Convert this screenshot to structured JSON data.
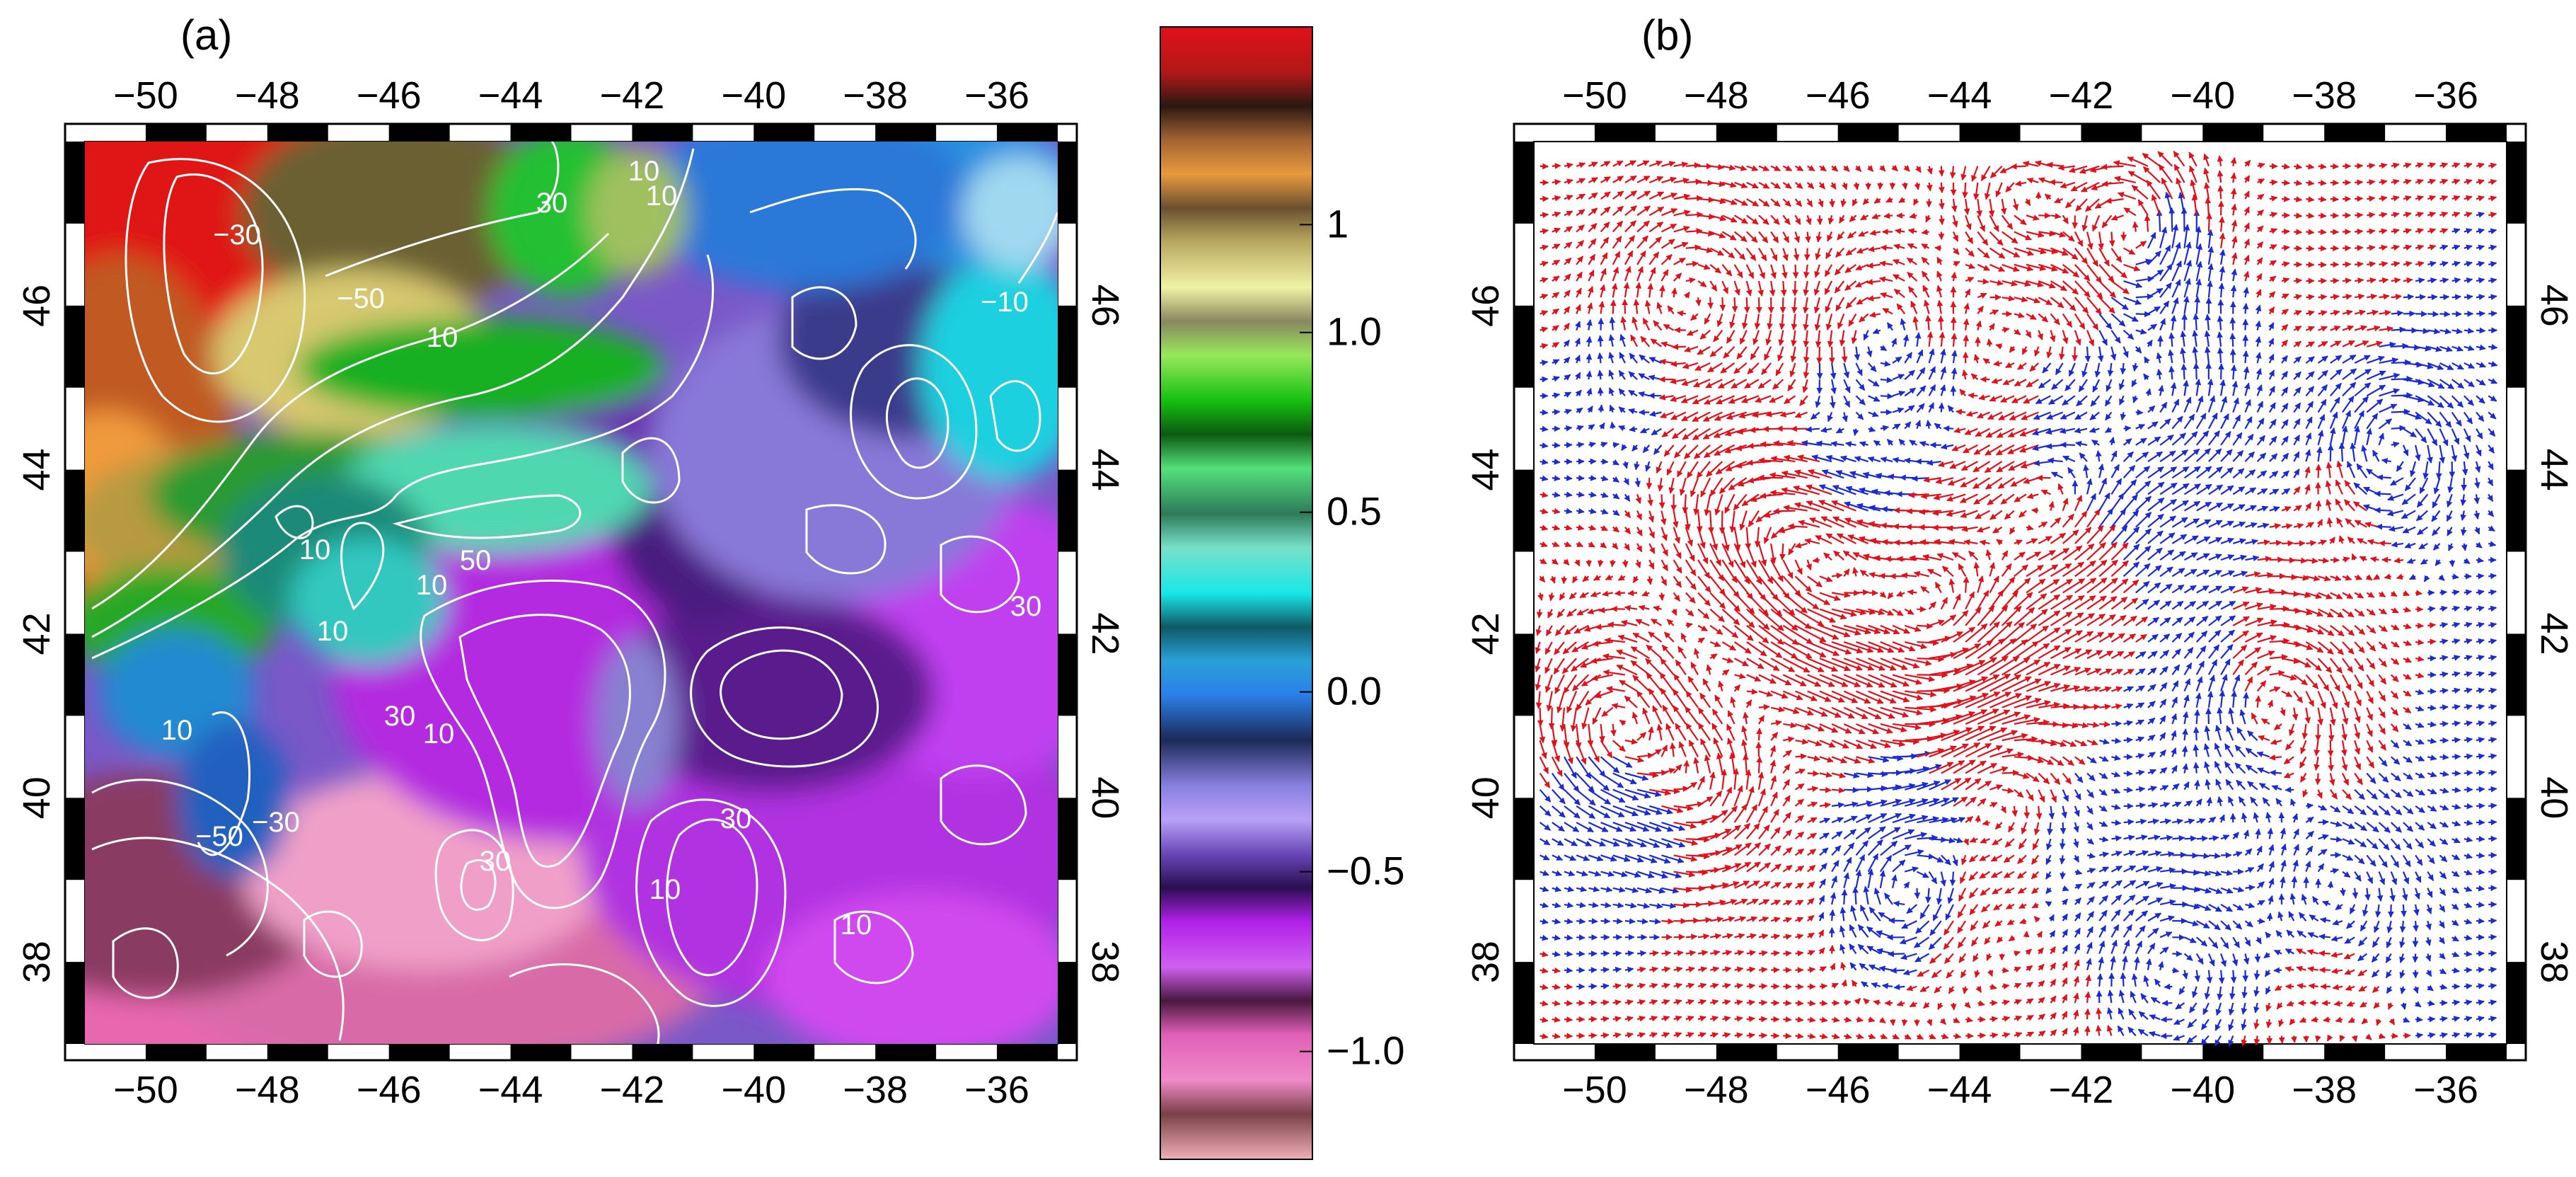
{
  "panels": {
    "a": {
      "label": "(a)",
      "lon_ticks": [
        "−50",
        "−48",
        "−46",
        "−44",
        "−42",
        "−40",
        "−38",
        "−36"
      ],
      "lat_ticks": [
        "38",
        "40",
        "42",
        "44",
        "46"
      ],
      "contour_labels": [
        "−30",
        "−50",
        "10",
        "10",
        "30",
        "10",
        "−10",
        "10",
        "10",
        "10",
        "50",
        "10",
        "30",
        "10",
        "30",
        "10",
        "30",
        "10",
        "30",
        "−50",
        "−30"
      ]
    },
    "b": {
      "label": "(b)",
      "lon_ticks": [
        "−50",
        "−48",
        "−46",
        "−44",
        "−42",
        "−40",
        "−38",
        "−36"
      ],
      "lat_ticks": [
        "38",
        "40",
        "42",
        "44",
        "46"
      ]
    }
  },
  "colorbar": {
    "tick_labels": [
      "1",
      "1.0",
      "0.5",
      "0.0",
      "−0.5",
      "−1.0"
    ],
    "tick_values": [
      1.3,
      1.0,
      0.5,
      0.0,
      -0.5,
      -1.0
    ],
    "range": [
      -1.3,
      1.85
    ]
  },
  "chart_data": {
    "type": "map",
    "lon_range": [
      -51,
      -35
    ],
    "lat_range": [
      37,
      48
    ],
    "colors": {
      "vector_positive": "#e3101a",
      "vector_negative": "#1a2bd6",
      "contour": "#ffffff"
    }
  }
}
